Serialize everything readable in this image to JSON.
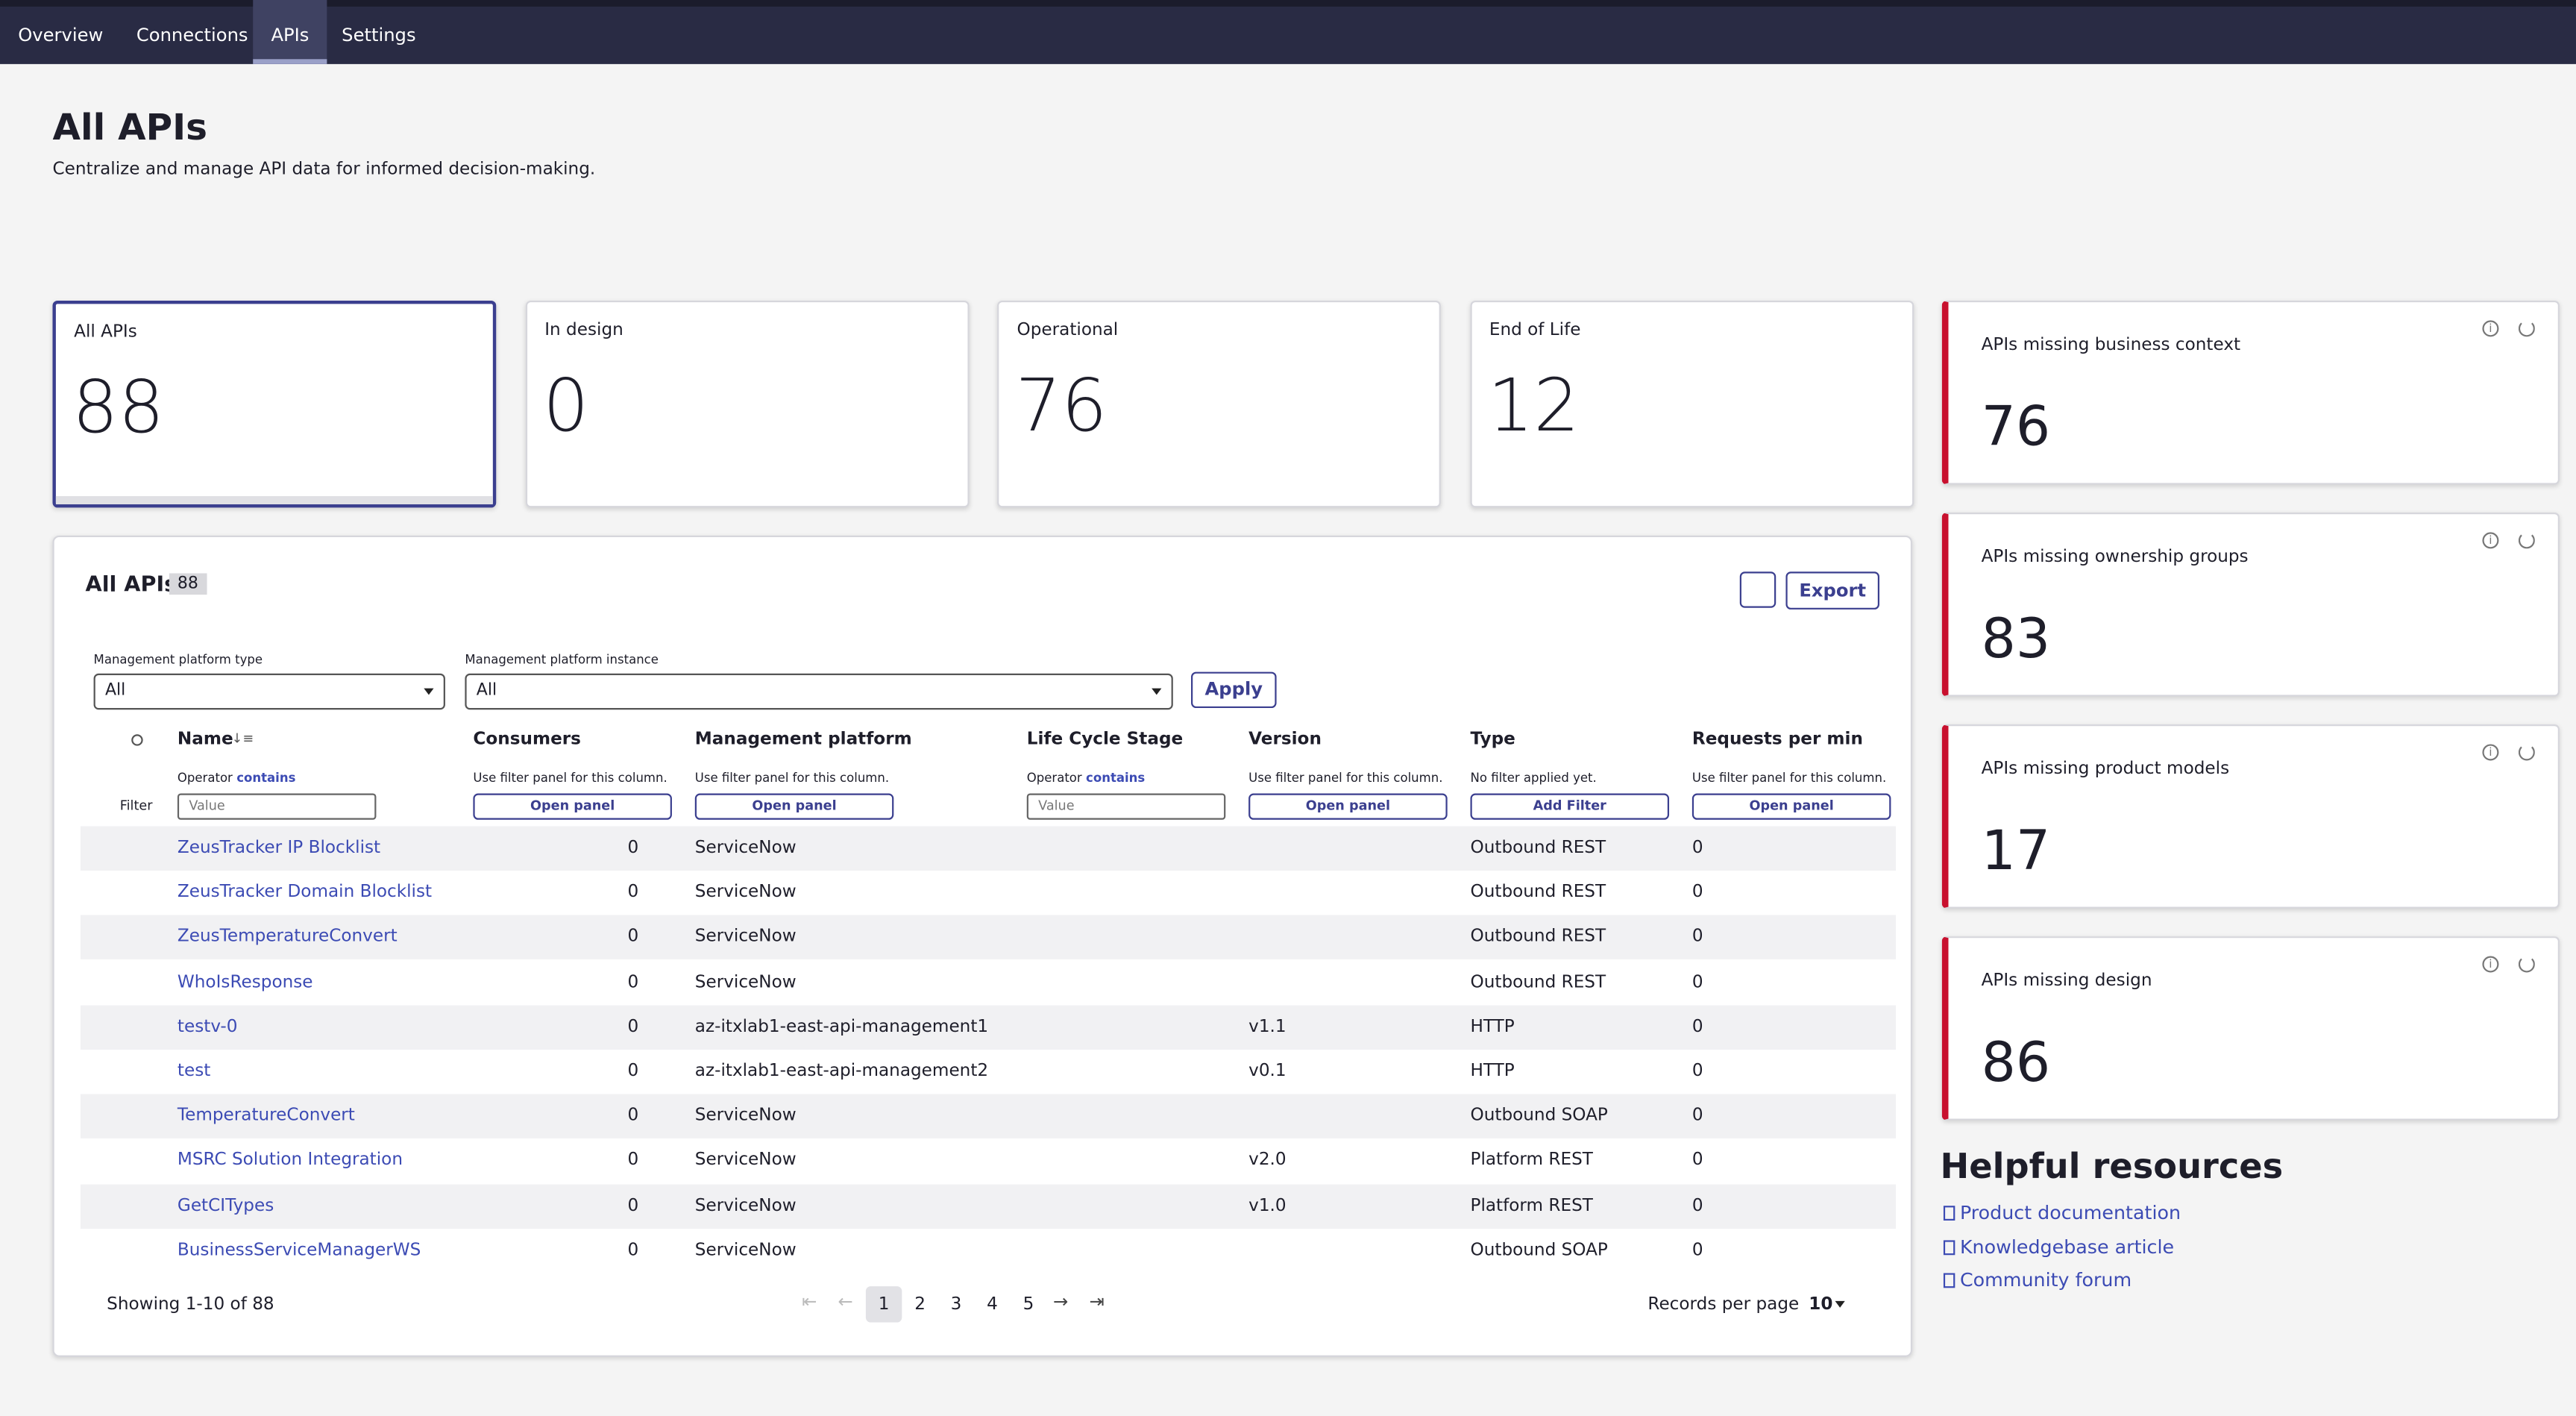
{
  "nav": {
    "tabs": [
      "Overview",
      "Connections",
      "APIs",
      "Settings"
    ],
    "active": 2
  },
  "header": {
    "title": "All APIs",
    "subtitle": "Centralize and manage API data for informed decision-making."
  },
  "stat_cards": [
    {
      "label": "All APIs",
      "value": 88
    },
    {
      "label": "In design",
      "value": 0
    },
    {
      "label": "Operational",
      "value": 76
    },
    {
      "label": "End of Life",
      "value": 12
    }
  ],
  "side_cards": [
    {
      "label": "APIs missing business context",
      "value": 76
    },
    {
      "label": "APIs missing ownership groups",
      "value": 83
    },
    {
      "label": "APIs missing product models",
      "value": 17
    },
    {
      "label": "APIs missing design",
      "value": 86
    }
  ],
  "table_panel": {
    "title": "All APIs",
    "count": 88,
    "export": "Export",
    "filters": [
      {
        "label": "Management platform type",
        "value": "All"
      },
      {
        "label": "Management platform instance",
        "value": "All"
      }
    ],
    "apply": "Apply",
    "filter_row_label": "Filter",
    "columns": [
      {
        "name": "Name",
        "hint": "Operator",
        "operator": "contains",
        "input": "Value"
      },
      {
        "name": "Consumers",
        "hint": "Use filter panel for this column.",
        "button": "Open panel"
      },
      {
        "name": "Management platform",
        "hint": "Use filter panel for this column.",
        "button": "Open panel"
      },
      {
        "name": "Life Cycle Stage",
        "hint": "Operator",
        "operator": "contains",
        "input": "Value"
      },
      {
        "name": "Version",
        "hint": "Use filter panel for this column.",
        "button": "Open panel"
      },
      {
        "name": "Type",
        "hint": "No filter applied yet.",
        "button": "Add Filter"
      },
      {
        "name": "Requests per min",
        "hint": "Use filter panel for this column.",
        "button": "Open panel"
      }
    ],
    "rows": [
      {
        "name": "ZeusTracker IP Blocklist",
        "consumers": 0,
        "platform": "ServiceNow",
        "type": "Outbound REST",
        "rpm": 0
      },
      {
        "name": "ZeusTracker Domain Blocklist",
        "consumers": 0,
        "platform": "ServiceNow",
        "type": "Outbound REST",
        "rpm": 0
      },
      {
        "name": "ZeusTemperatureConvert",
        "consumers": 0,
        "platform": "ServiceNow",
        "type": "Outbound REST",
        "rpm": 0
      },
      {
        "name": "WhoIsResponse",
        "consumers": 0,
        "platform": "ServiceNow",
        "type": "Outbound REST",
        "rpm": 0
      },
      {
        "name": "testv-0",
        "consumers": 0,
        "platform": "az-itxlab1-east-api-management1",
        "version": "v1.1",
        "type": "HTTP",
        "rpm": 0
      },
      {
        "name": "test",
        "consumers": 0,
        "platform": "az-itxlab1-east-api-management2",
        "version": "v0.1",
        "type": "HTTP",
        "rpm": 0
      },
      {
        "name": "TemperatureConvert",
        "consumers": 0,
        "platform": "ServiceNow",
        "type": "Outbound SOAP",
        "rpm": 0
      },
      {
        "name": "MSRC Solution Integration",
        "consumers": 0,
        "platform": "ServiceNow",
        "version": "v2.0",
        "type": "Platform REST",
        "rpm": 0
      },
      {
        "name": "GetCITypes",
        "consumers": 0,
        "platform": "ServiceNow",
        "version": "v1.0",
        "type": "Platform REST",
        "rpm": 0
      },
      {
        "name": "BusinessServiceManagerWS",
        "consumers": 0,
        "platform": "ServiceNow",
        "type": "Outbound SOAP",
        "rpm": 0
      }
    ],
    "footer": {
      "showing": "Showing 1-10 of 88",
      "pages": [
        1,
        2,
        3,
        4,
        5
      ],
      "current": 0,
      "records_label": "Records per page",
      "records": 10
    }
  },
  "resources": {
    "title": "Helpful resources",
    "links": [
      "Product documentation",
      "Knowledgebase article",
      "Community forum"
    ]
  }
}
